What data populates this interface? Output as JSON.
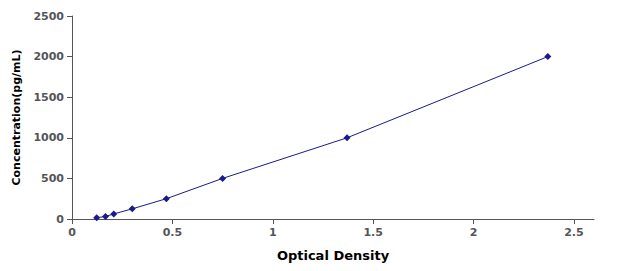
{
  "chart_data": {
    "type": "line",
    "x": [
      0.123,
      0.167,
      0.208,
      0.3,
      0.47,
      0.75,
      1.37,
      2.37
    ],
    "values": [
      15.6,
      31.25,
      62.5,
      125,
      250,
      500,
      1000,
      2000
    ],
    "color": "#1a1a8c",
    "marker": "diamond",
    "line_style": "solid",
    "xlabel": "Optical Density",
    "ylabel": "Concentration(pg/mL)",
    "xlim": [
      0,
      2.6
    ],
    "ylim": [
      0,
      2500
    ],
    "xticks": [
      0,
      0.5,
      1,
      1.5,
      2,
      2.5
    ],
    "yticks": [
      0,
      500,
      1000,
      1500,
      2000,
      2500
    ],
    "grid": false
  }
}
